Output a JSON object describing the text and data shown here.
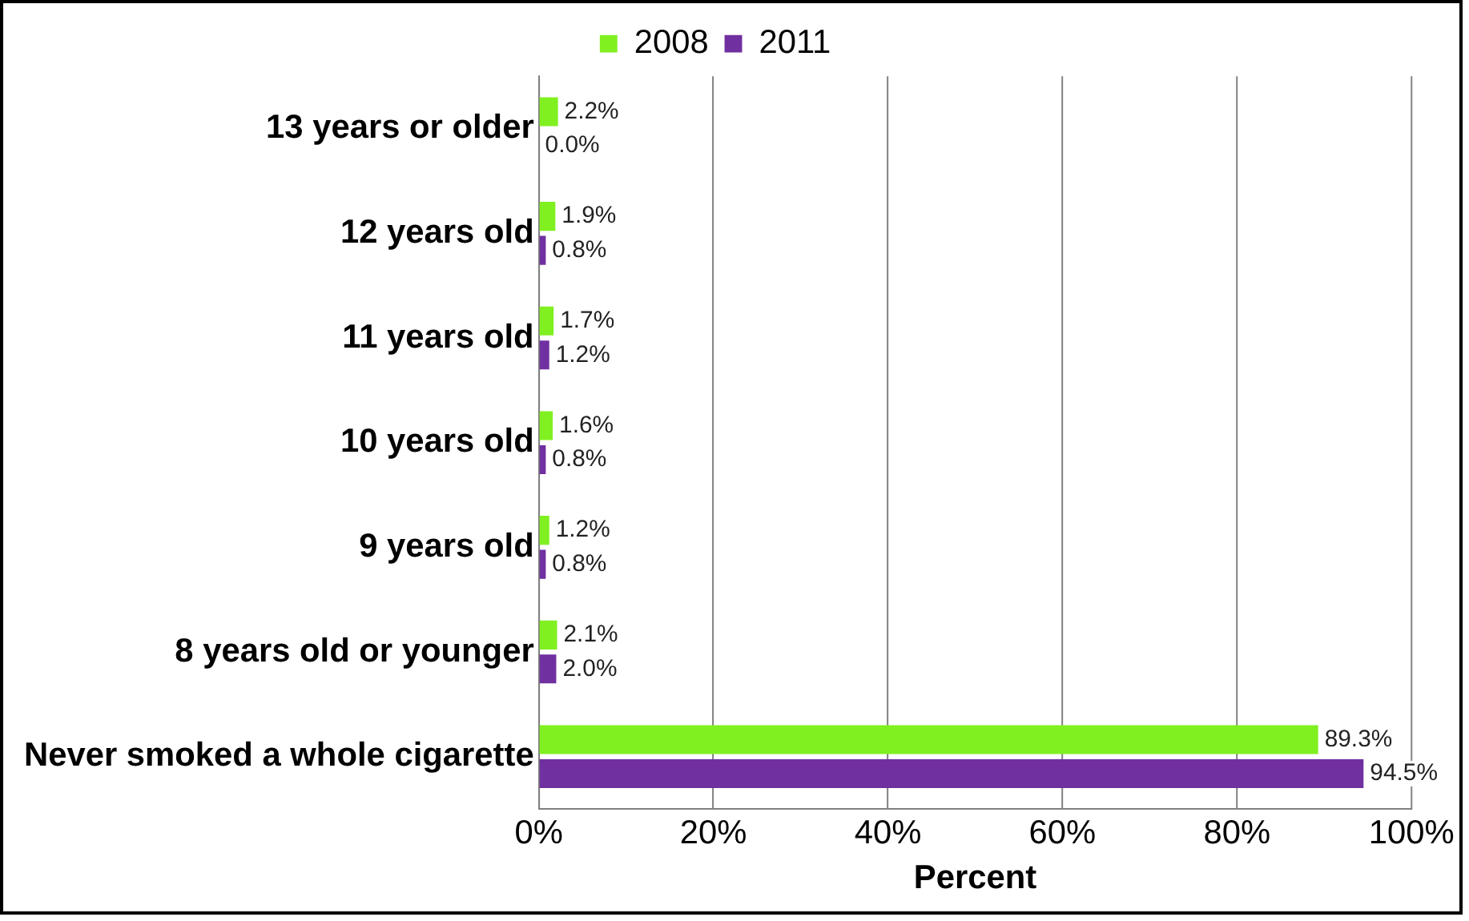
{
  "chart_data": {
    "type": "bar",
    "orientation": "horizontal",
    "xlabel": "Percent",
    "categories": [
      "13 years or older",
      "12 years old",
      "11 years old",
      "10 years old",
      "9 years old",
      "8 years old or younger",
      "Never smoked a whole cigarette"
    ],
    "series": [
      {
        "name": "2008",
        "color": "#80f020",
        "values": [
          2.2,
          1.9,
          1.7,
          1.6,
          1.2,
          2.1,
          89.3
        ],
        "value_labels": [
          "2.2%",
          "1.9%",
          "1.7%",
          "1.6%",
          "1.2%",
          "2.1%",
          "89.3%"
        ]
      },
      {
        "name": "2011",
        "color": "#7030a0",
        "values": [
          0.0,
          0.8,
          1.2,
          0.8,
          0.8,
          2.0,
          94.5
        ],
        "value_labels": [
          "0.0%",
          "0.8%",
          "1.2%",
          "0.8%",
          "0.8%",
          "2.0%",
          "94.5%"
        ]
      }
    ],
    "xlim": [
      0,
      100
    ],
    "xticks": [
      {
        "value": 0,
        "label": "0%"
      },
      {
        "value": 20,
        "label": "20%"
      },
      {
        "value": 40,
        "label": "40%"
      },
      {
        "value": 60,
        "label": "60%"
      },
      {
        "value": 80,
        "label": "80%"
      },
      {
        "value": 100,
        "label": "100%"
      }
    ],
    "grid": "x",
    "legend": "top"
  }
}
